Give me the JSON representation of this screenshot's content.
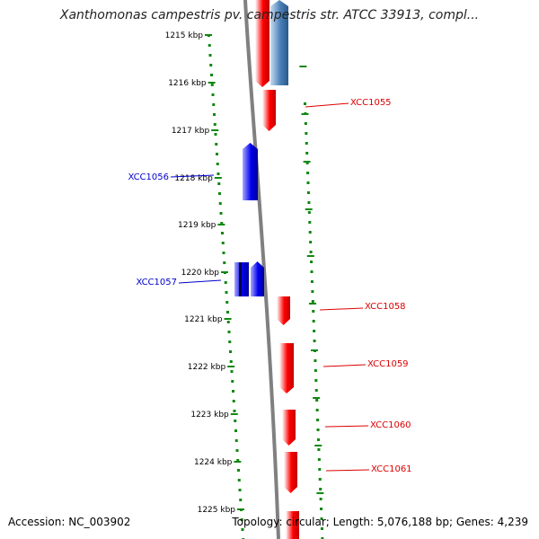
{
  "title": "Xanthomonas campestris pv. campestris str. ATCC 33913, compl...",
  "footer": {
    "accession": "Accession: NC_003902",
    "stats": "Topology: circular; Length: 5,076,188 bp; Genes: 4,239"
  },
  "colors": {
    "forward_gene": "#ff0000",
    "reverse_gene": "#0000ee",
    "reverse_gene_alt": "#4a80b8",
    "backbone": "#808080",
    "ticks": "#118811"
  },
  "positions": [
    "1215 kbp",
    "1216 kbp",
    "1217 kbp",
    "1218 kbp",
    "1219 kbp",
    "1220 kbp",
    "1221 kbp",
    "1222 kbp",
    "1223 kbp",
    "1224 kbp",
    "1225 kbp"
  ],
  "genes": [
    {
      "label": "XCC1055",
      "strand": "forward"
    },
    {
      "label": "XCC1056",
      "strand": "reverse"
    },
    {
      "label": "XCC1057",
      "strand": "reverse"
    },
    {
      "label": "XCC1058",
      "strand": "forward"
    },
    {
      "label": "XCC1059",
      "strand": "forward"
    },
    {
      "label": "XCC1060",
      "strand": "forward"
    },
    {
      "label": "XCC1061",
      "strand": "forward"
    }
  ]
}
